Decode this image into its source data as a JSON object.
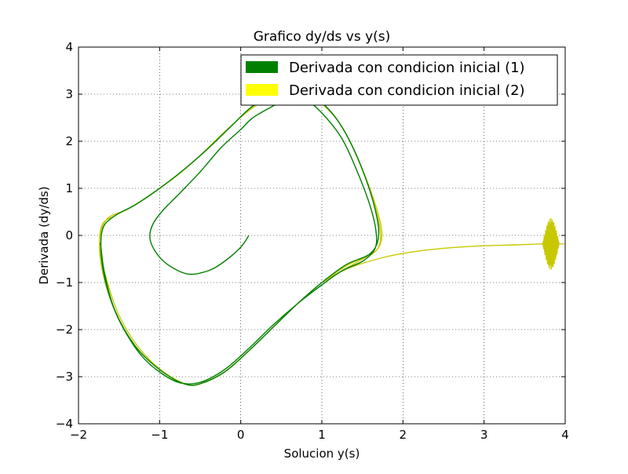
{
  "chart_data": {
    "type": "line",
    "title": "Grafico dy/ds vs y(s)",
    "xlabel": "Solucion y(s)",
    "ylabel": "Derivada (dy/ds)",
    "xlim": [
      -2,
      4
    ],
    "ylim": [
      -4,
      4
    ],
    "xticks": [
      -2,
      -1,
      0,
      1,
      2,
      3,
      4
    ],
    "yticks": [
      -4,
      -3,
      -2,
      -1,
      0,
      1,
      2,
      3,
      4
    ],
    "xtick_labels": [
      "−2",
      "−1",
      "0",
      "1",
      "2",
      "3",
      "4"
    ],
    "ytick_labels": [
      "−4",
      "−3",
      "−2",
      "−1",
      "0",
      "1",
      "2",
      "3",
      "4"
    ],
    "grid": true,
    "legend_position": "upper-right",
    "series": [
      {
        "name": "Derivada con condicion inicial (1)",
        "color": "#008000",
        "points": [
          [
            0.1,
            0.0
          ],
          [
            0.0,
            -0.25
          ],
          [
            -0.2,
            -0.55
          ],
          [
            -0.4,
            -0.75
          ],
          [
            -0.65,
            -0.82
          ],
          [
            -0.9,
            -0.62
          ],
          [
            -1.05,
            -0.35
          ],
          [
            -1.12,
            -0.05
          ],
          [
            -1.08,
            0.25
          ],
          [
            -0.95,
            0.55
          ],
          [
            -0.75,
            0.9
          ],
          [
            -0.5,
            1.35
          ],
          [
            -0.25,
            1.85
          ],
          [
            0.0,
            2.25
          ],
          [
            0.15,
            2.5
          ],
          [
            0.4,
            2.75
          ],
          [
            0.6,
            2.92
          ],
          [
            0.8,
            2.88
          ],
          [
            1.0,
            2.6
          ],
          [
            1.25,
            2.05
          ],
          [
            1.45,
            1.3
          ],
          [
            1.6,
            0.6
          ],
          [
            1.67,
            0.05
          ],
          [
            1.65,
            -0.3
          ],
          [
            1.5,
            -0.55
          ],
          [
            1.25,
            -0.75
          ],
          [
            1.0,
            -1.05
          ],
          [
            0.7,
            -1.45
          ],
          [
            0.4,
            -1.9
          ],
          [
            0.1,
            -2.4
          ],
          [
            -0.2,
            -2.85
          ],
          [
            -0.5,
            -3.12
          ],
          [
            -0.75,
            -3.13
          ],
          [
            -1.0,
            -2.9
          ],
          [
            -1.25,
            -2.5
          ],
          [
            -1.5,
            -1.8
          ],
          [
            -1.65,
            -1.1
          ],
          [
            -1.72,
            -0.4
          ],
          [
            -1.7,
            0.15
          ],
          [
            -1.55,
            0.42
          ],
          [
            -1.3,
            0.65
          ],
          [
            -1.0,
            1.0
          ],
          [
            -0.7,
            1.4
          ],
          [
            -0.4,
            1.85
          ],
          [
            -0.1,
            2.35
          ],
          [
            0.15,
            2.75
          ],
          [
            0.4,
            2.95
          ],
          [
            0.65,
            3.0
          ],
          [
            0.9,
            2.92
          ],
          [
            1.1,
            2.65
          ],
          [
            1.3,
            2.15
          ],
          [
            1.5,
            1.4
          ],
          [
            1.65,
            0.6
          ],
          [
            1.7,
            0.0
          ],
          [
            1.6,
            -0.38
          ],
          [
            1.3,
            -0.62
          ],
          [
            1.0,
            -1.0
          ],
          [
            0.7,
            -1.45
          ],
          [
            0.4,
            -1.95
          ],
          [
            0.1,
            -2.45
          ],
          [
            -0.2,
            -2.9
          ],
          [
            -0.5,
            -3.15
          ],
          [
            -0.7,
            -3.15
          ],
          [
            -1.0,
            -2.85
          ],
          [
            -1.3,
            -2.35
          ],
          [
            -1.55,
            -1.6
          ],
          [
            -1.68,
            -0.8
          ],
          [
            -1.73,
            -0.15
          ]
        ]
      },
      {
        "name": "Derivada con condicion inicial (2)",
        "color": "#ffff00",
        "display_color": "#c8c800",
        "points": [
          [
            3.72,
            -0.18
          ],
          [
            3.4,
            -0.2
          ],
          [
            3.0,
            -0.22
          ],
          [
            2.6,
            -0.26
          ],
          [
            2.2,
            -0.33
          ],
          [
            1.8,
            -0.45
          ],
          [
            1.4,
            -0.65
          ],
          [
            1.2,
            -0.8
          ],
          [
            1.0,
            -1.0
          ],
          [
            0.7,
            -1.45
          ],
          [
            0.4,
            -1.95
          ],
          [
            0.1,
            -2.45
          ],
          [
            -0.2,
            -2.9
          ],
          [
            -0.45,
            -3.12
          ],
          [
            -0.65,
            -3.17
          ],
          [
            -0.95,
            -2.9
          ],
          [
            -1.25,
            -2.4
          ],
          [
            -1.5,
            -1.7
          ],
          [
            -1.66,
            -0.9
          ],
          [
            -1.74,
            -0.2
          ],
          [
            -1.7,
            0.25
          ],
          [
            -1.55,
            0.42
          ],
          [
            -1.3,
            0.65
          ],
          [
            -1.0,
            1.0
          ],
          [
            -0.7,
            1.4
          ],
          [
            -0.4,
            1.85
          ],
          [
            -0.1,
            2.35
          ],
          [
            0.15,
            2.75
          ],
          [
            0.4,
            2.95
          ],
          [
            0.65,
            3.0
          ],
          [
            0.9,
            2.92
          ],
          [
            1.1,
            2.65
          ],
          [
            1.3,
            2.15
          ],
          [
            1.5,
            1.4
          ],
          [
            1.67,
            0.6
          ],
          [
            1.74,
            0.0
          ],
          [
            1.65,
            -0.35
          ],
          [
            1.35,
            -0.6
          ],
          [
            1.0,
            -1.0
          ],
          [
            0.7,
            -1.45
          ],
          [
            0.4,
            -1.95
          ],
          [
            0.1,
            -2.45
          ],
          [
            -0.2,
            -2.9
          ],
          [
            -0.5,
            -3.15
          ],
          [
            -0.7,
            -3.15
          ],
          [
            -1.0,
            -2.85
          ],
          [
            -1.3,
            -2.35
          ],
          [
            -1.55,
            -1.6
          ],
          [
            -1.7,
            -0.8
          ],
          [
            -1.74,
            -0.1
          ],
          [
            -1.65,
            0.35
          ],
          [
            -1.4,
            0.55
          ],
          [
            -1.1,
            0.88
          ],
          [
            -0.8,
            1.25
          ],
          [
            -0.5,
            1.7
          ],
          [
            -0.2,
            2.2
          ],
          [
            0.1,
            2.65
          ],
          [
            0.35,
            2.92
          ],
          [
            0.6,
            3.0
          ],
          [
            0.85,
            2.95
          ],
          [
            1.05,
            2.72
          ],
          [
            1.25,
            2.3
          ],
          [
            1.45,
            1.6
          ],
          [
            1.62,
            0.8
          ],
          [
            1.72,
            0.1
          ],
          [
            1.68,
            -0.3
          ],
          [
            1.45,
            -0.55
          ],
          [
            1.15,
            -0.85
          ],
          [
            1.0,
            -1.0
          ]
        ],
        "oscillation": {
          "x_start": 3.72,
          "x_end": 4.0,
          "center": -0.18,
          "max_amplitude": 0.55
        }
      }
    ]
  }
}
